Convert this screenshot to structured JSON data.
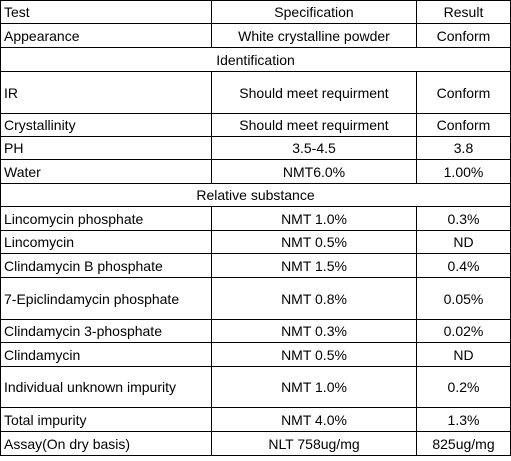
{
  "header": {
    "test": "Test",
    "specification": "Specification",
    "result": "Result"
  },
  "rows": [
    {
      "test": "Appearance",
      "spec": "White crystalline powder",
      "result": "Conform"
    },
    {
      "section": "Identification"
    },
    {
      "test": "IR",
      "spec": "Should meet requirment",
      "result": "Conform"
    },
    {
      "test": "Crystallinity",
      "spec": "Should meet requirment",
      "result": "Conform"
    },
    {
      "test": "PH",
      "spec": "3.5-4.5",
      "result": "3.8"
    },
    {
      "test": "Water",
      "spec": "NMT6.0%",
      "result": "1.00%"
    },
    {
      "section": "Relative substance"
    },
    {
      "test": "Lincomycin phosphate",
      "spec": "NMT 1.0%",
      "result": "0.3%"
    },
    {
      "test": "Lincomycin",
      "spec": "NMT 0.5%",
      "result": "ND"
    },
    {
      "test": "Clindamycin B phosphate",
      "spec": "NMT 1.5%",
      "result": "0.4%"
    },
    {
      "test": "7-Epiclindamycin phosphate",
      "spec": "NMT 0.8%",
      "result": "0.05%"
    },
    {
      "test": "Clindamycin 3-phosphate",
      "spec": "NMT 0.3%",
      "result": "0.02%"
    },
    {
      "test": "Clindamycin",
      "spec": "NMT 0.5%",
      "result": "ND"
    },
    {
      "test": "Individual unknown impurity",
      "spec": "NMT 1.0%",
      "result": "0.2%"
    },
    {
      "test": "Total impurity",
      "spec": "NMT 4.0%",
      "result": "1.3%"
    },
    {
      "test": "Assay(On dry basis)",
      "spec": "NLT 758ug/mg",
      "result": "825ug/mg"
    }
  ]
}
